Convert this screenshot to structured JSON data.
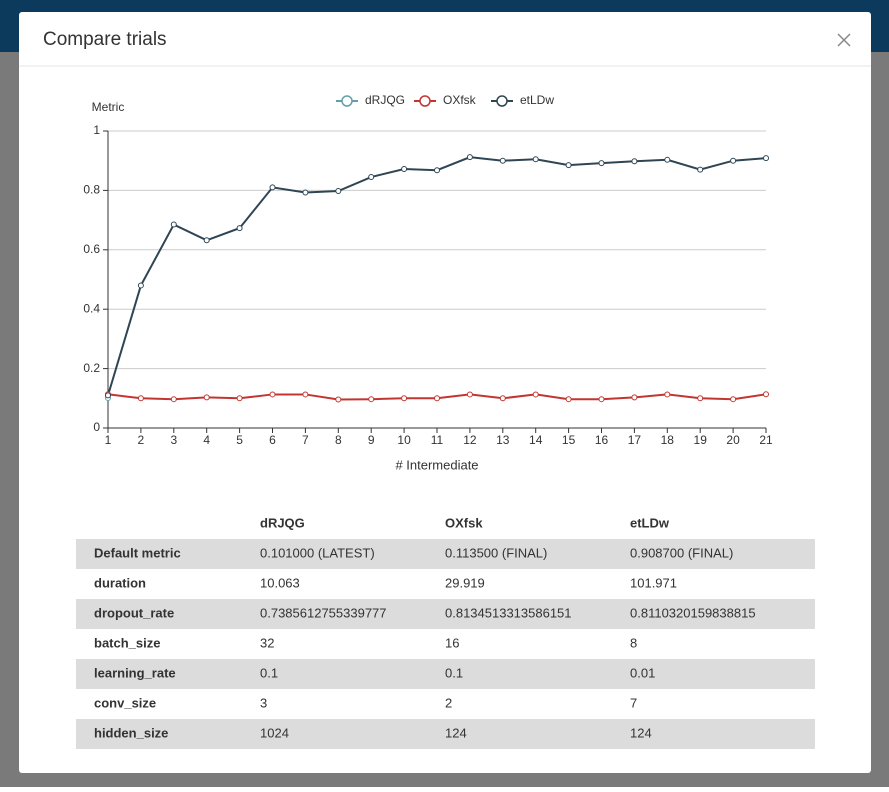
{
  "modal": {
    "title": "Compare trials"
  },
  "chart_data": {
    "type": "line",
    "ylabel": "Metric",
    "xlabel": "# Intermediate",
    "x": [
      1,
      2,
      3,
      4,
      5,
      6,
      7,
      8,
      9,
      10,
      11,
      12,
      13,
      14,
      15,
      16,
      17,
      18,
      19,
      20,
      21
    ],
    "xlim": [
      1,
      21
    ],
    "xticks": [
      1,
      2,
      3,
      4,
      5,
      6,
      7,
      8,
      9,
      10,
      11,
      12,
      13,
      14,
      15,
      16,
      17,
      18,
      19,
      20,
      21
    ],
    "ylim": [
      0,
      1
    ],
    "yticks": [
      0,
      0.2,
      0.4,
      0.6,
      0.8,
      1
    ],
    "grid": true,
    "legend": "top",
    "series": [
      {
        "name": "dRJQG",
        "color": "#61a0a8",
        "values": [
          0.101,
          null,
          null,
          null,
          null,
          null,
          null,
          null,
          null,
          null,
          null,
          null,
          null,
          null,
          null,
          null,
          null,
          null,
          null,
          null,
          null
        ]
      },
      {
        "name": "OXfsk",
        "color": "#c23531",
        "values": [
          0.1135,
          0.1,
          0.097,
          0.103,
          0.1,
          0.113,
          0.113,
          0.096,
          0.097,
          0.1,
          0.1,
          0.113,
          0.1,
          0.113,
          0.097,
          0.097,
          0.103,
          0.113,
          0.1,
          0.097,
          0.1135
        ]
      },
      {
        "name": "etLDw",
        "color": "#2f4554",
        "values": [
          0.11,
          0.48,
          0.685,
          0.632,
          0.673,
          0.81,
          0.793,
          0.798,
          0.845,
          0.872,
          0.868,
          0.912,
          0.9,
          0.905,
          0.885,
          0.892,
          0.898,
          0.903,
          0.87,
          0.9,
          0.9087
        ]
      }
    ]
  },
  "table": {
    "columns": [
      "dRJQG",
      "OXfsk",
      "etLDw"
    ],
    "rows": [
      {
        "label": "Default metric",
        "cells": [
          "0.101000 (LATEST)",
          "0.113500 (FINAL)",
          "0.908700 (FINAL)"
        ]
      },
      {
        "label": "duration",
        "cells": [
          "10.063",
          "29.919",
          "101.971"
        ]
      },
      {
        "label": "dropout_rate",
        "cells": [
          "0.7385612755339777",
          "0.8134513313586151",
          "0.8110320159838815"
        ]
      },
      {
        "label": "batch_size",
        "cells": [
          "32",
          "16",
          "8"
        ]
      },
      {
        "label": "learning_rate",
        "cells": [
          "0.1",
          "0.1",
          "0.01"
        ]
      },
      {
        "label": "conv_size",
        "cells": [
          "3",
          "2",
          "7"
        ]
      },
      {
        "label": "hidden_size",
        "cells": [
          "1024",
          "124",
          "124"
        ]
      }
    ]
  }
}
